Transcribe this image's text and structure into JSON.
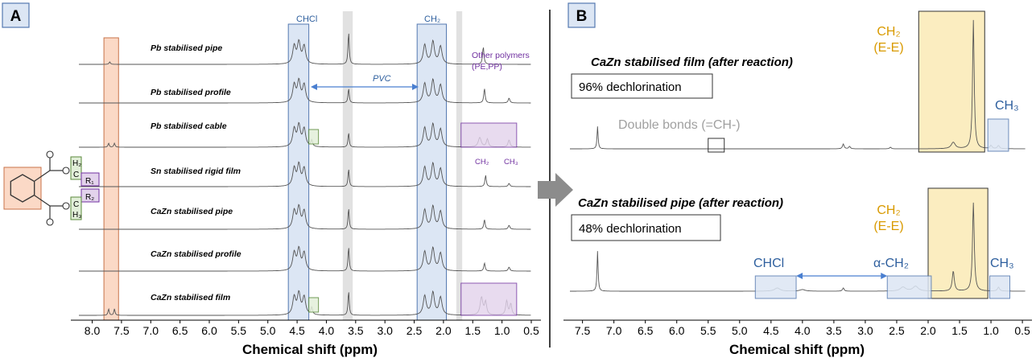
{
  "chart_data": [
    {
      "type": "line",
      "panel": "A",
      "xlabel": "Chemical shift (ppm)",
      "xlim": [
        8.2,
        0.5
      ],
      "x_reversed": true,
      "xticks": [
        "8.0",
        "7.5",
        "7.0",
        "6.5",
        "6.0",
        "5.5",
        "5.0",
        "4.5",
        "4.0",
        "3.5",
        "3.0",
        "2.5",
        "2.0",
        "1.5",
        "1.0",
        "0.5"
      ],
      "series": [
        {
          "name": "Pb stabilised pipe"
        },
        {
          "name": "Pb stabilised profile"
        },
        {
          "name": "Pb stabilised cable"
        },
        {
          "name": "Sn stabilised rigid film"
        },
        {
          "name": "CaZn stabilised pipe"
        },
        {
          "name": "CaZn stabilised profile"
        },
        {
          "name": "CaZn stabilised film"
        }
      ],
      "annotations": {
        "chcl": "CHCl",
        "ch2": "CH₂",
        "pvc": "PVC",
        "other_polymers_1": "Other polymers",
        "other_polymers_2": "(PE,PP)",
        "poly_ch2": "CH₂",
        "poly_ch3": "CH₃",
        "struct_h2": "H₂",
        "struct_c1": "C",
        "struct_r1": "R₁",
        "struct_r2": "R₂",
        "struct_c2": "C",
        "struct_h3": "H₃",
        "struct_o": "O"
      },
      "highlight_ranges": {
        "phthalate_aromatic": [
          7.8,
          7.55
        ],
        "chcl": [
          4.65,
          4.3
        ],
        "ch2": [
          2.45,
          1.95
        ],
        "polyolefin": [
          1.7,
          0.75
        ]
      },
      "colors": {
        "orange_fill": "#fbd9c6",
        "orange_edge": "#c8734a",
        "blue_fill": "#dce6f4",
        "blue_edge": "#5478b0",
        "purple_fill": "#e3d3ec",
        "purple_edge": "#7030a0",
        "green_fill": "#e2efd9",
        "green_edge": "#5a8a3a",
        "gray_band": "#d9d9d9"
      }
    },
    {
      "type": "line",
      "panel": "B",
      "xlabel": "Chemical shift (ppm)",
      "xlim": [
        7.7,
        0.45
      ],
      "x_reversed": true,
      "xticks": [
        "7.5",
        "7.0",
        "6.5",
        "6.0",
        "5.5",
        "5.0",
        "4.5",
        "4.0",
        "3.5",
        "3.0",
        "2.5",
        "2.0",
        "1.5",
        "1.0",
        "0.5"
      ],
      "series": [
        {
          "name": "CaZn stabilised film (after reaction)",
          "dechlorination_percent": 96
        },
        {
          "name": "CaZn stabilised pipe (after reaction)",
          "dechlorination_percent": 48
        }
      ],
      "labels": {
        "film_title": "CaZn stabilised film (after reaction)",
        "film_box": "96% dechlorination",
        "pipe_title": "CaZn stabilised pipe (after reaction)",
        "pipe_box": "48% dechlorination",
        "double_bonds": "Double bonds (=CH-)",
        "ch2_top_1": "CH₂",
        "ch2_top_2": "(E-E)",
        "ch3_top": "CH₃",
        "ch2_bot_1": "CH₂",
        "ch2_bot_2": "(E-E)",
        "ch3_bot": "CH₃",
        "chcl_bot": "CHCl",
        "alpha_ch2": "α-CH₂"
      },
      "colors": {
        "yellow_fill": "#fbedc0",
        "yellow_edge": "#333333",
        "blue_fill": "#dce6f4",
        "blue_edge": "#5478b0"
      }
    }
  ],
  "panel_labels": {
    "a": "A",
    "b": "B"
  }
}
